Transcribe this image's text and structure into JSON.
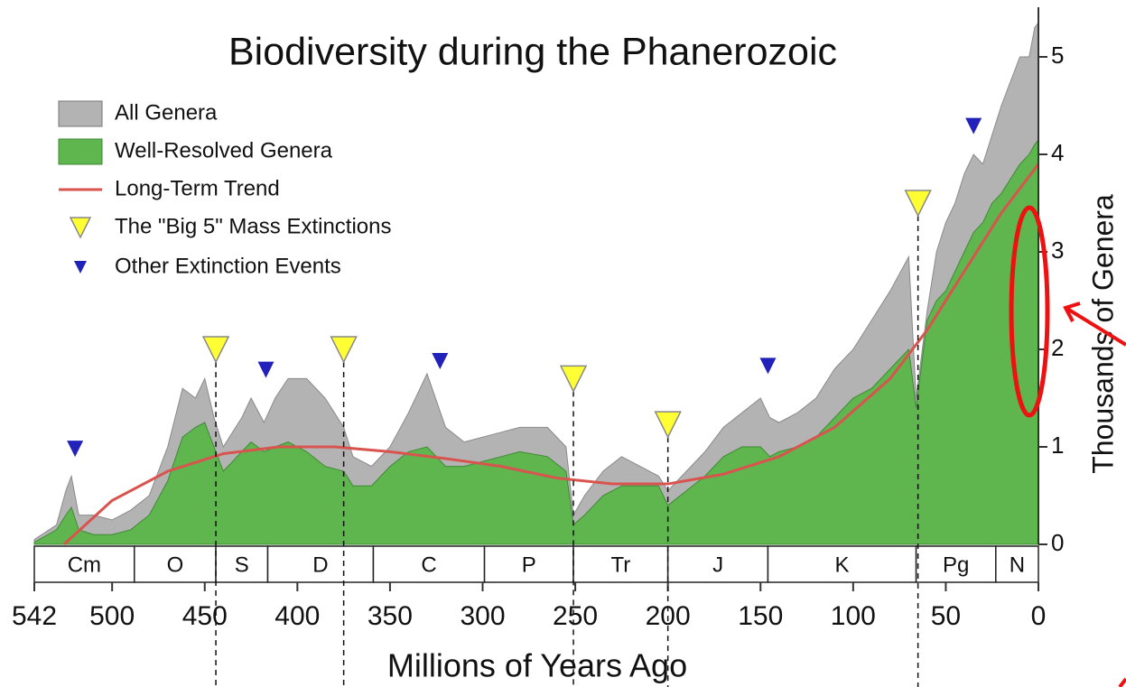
{
  "chart_data": {
    "type": "area",
    "title": "Biodiversity during the Phanerozoic",
    "x_label": "Millions of Years Ago",
    "y_label": "Thousands of Genera",
    "xlim": [
      542,
      0
    ],
    "xticks": [
      542,
      500,
      450,
      400,
      350,
      300,
      250,
      200,
      150,
      100,
      50,
      0
    ],
    "ylim": [
      0,
      5.5
    ],
    "yticks": [
      0,
      1,
      2,
      3,
      4,
      5
    ],
    "x": [
      542,
      530,
      525,
      522,
      518,
      510,
      500,
      490,
      480,
      470,
      462,
      455,
      450,
      445,
      440,
      430,
      425,
      418,
      412,
      405,
      395,
      385,
      375,
      370,
      360,
      350,
      340,
      330,
      320,
      310,
      300,
      290,
      280,
      265,
      255,
      251,
      245,
      235,
      225,
      215,
      205,
      200,
      190,
      180,
      170,
      160,
      150,
      145,
      140,
      130,
      120,
      110,
      100,
      90,
      80,
      70,
      66,
      60,
      55,
      50,
      45,
      40,
      35,
      30,
      25,
      20,
      10,
      5,
      2,
      0
    ],
    "series": [
      {
        "name": "All Genera",
        "color": "#b3b3b3",
        "values": [
          0.05,
          0.2,
          0.55,
          0.7,
          0.3,
          0.3,
          0.25,
          0.35,
          0.5,
          1.0,
          1.6,
          1.5,
          1.7,
          1.3,
          1.0,
          1.3,
          1.5,
          1.25,
          1.5,
          1.7,
          1.7,
          1.5,
          1.2,
          0.9,
          0.8,
          1.0,
          1.35,
          1.75,
          1.2,
          1.05,
          1.1,
          1.15,
          1.2,
          1.2,
          1.0,
          0.3,
          0.5,
          0.75,
          0.9,
          0.8,
          0.7,
          0.55,
          0.75,
          0.95,
          1.2,
          1.35,
          1.5,
          1.3,
          1.25,
          1.35,
          1.5,
          1.8,
          2.0,
          2.3,
          2.6,
          2.95,
          1.5,
          2.4,
          3.0,
          3.3,
          3.5,
          3.8,
          4.0,
          3.9,
          4.2,
          4.5,
          5.0,
          5.0,
          5.3,
          5.35
        ]
      },
      {
        "name": "Well-Resolved Genera",
        "color": "#5fb54e",
        "values": [
          0.02,
          0.15,
          0.3,
          0.38,
          0.15,
          0.1,
          0.1,
          0.15,
          0.3,
          0.65,
          1.1,
          1.2,
          1.25,
          1.0,
          0.75,
          0.95,
          1.05,
          0.95,
          1.0,
          1.05,
          0.95,
          0.8,
          0.75,
          0.6,
          0.6,
          0.8,
          0.95,
          1.0,
          0.8,
          0.8,
          0.85,
          0.9,
          0.95,
          0.9,
          0.75,
          0.2,
          0.3,
          0.5,
          0.6,
          0.6,
          0.6,
          0.4,
          0.55,
          0.7,
          0.9,
          1.0,
          1.0,
          0.9,
          0.95,
          1.0,
          1.1,
          1.3,
          1.5,
          1.6,
          1.8,
          2.0,
          1.4,
          2.3,
          2.5,
          2.6,
          2.8,
          3.0,
          3.2,
          3.3,
          3.5,
          3.6,
          3.9,
          4.0,
          4.1,
          4.15
        ]
      }
    ],
    "trend": {
      "name": "Long-Term Trend",
      "color": "#d9534f",
      "x": [
        526,
        500,
        470,
        440,
        410,
        380,
        350,
        320,
        290,
        260,
        230,
        200,
        170,
        140,
        110,
        80,
        60,
        40,
        20,
        0
      ],
      "values": [
        0,
        0.45,
        0.75,
        0.93,
        1.0,
        1.0,
        0.95,
        0.88,
        0.8,
        0.68,
        0.62,
        0.62,
        0.72,
        0.9,
        1.2,
        1.7,
        2.2,
        2.8,
        3.4,
        3.9
      ]
    },
    "big5": {
      "name": "The \"Big 5\" Mass Extinctions",
      "color": "#ffff33",
      "x": [
        444,
        375,
        251,
        200,
        65
      ],
      "values": [
        2.0,
        2.0,
        1.7,
        1.23,
        3.5
      ]
    },
    "other": {
      "name": "Other Extinction Events",
      "color": "#2222bb",
      "x": [
        520,
        417,
        323,
        146,
        35
      ],
      "values": [
        0.98,
        1.79,
        1.88,
        1.83,
        4.29
      ]
    },
    "periods": [
      {
        "label": "Cm",
        "start": 542,
        "end": 488
      },
      {
        "label": "O",
        "start": 488,
        "end": 444
      },
      {
        "label": "S",
        "start": 444,
        "end": 416
      },
      {
        "label": "D",
        "start": 416,
        "end": 359
      },
      {
        "label": "C",
        "start": 359,
        "end": 299
      },
      {
        "label": "P",
        "start": 299,
        "end": 251
      },
      {
        "label": "Tr",
        "start": 251,
        "end": 200
      },
      {
        "label": "J",
        "start": 200,
        "end": 146
      },
      {
        "label": "K",
        "start": 146,
        "end": 66
      },
      {
        "label": "Pg",
        "start": 66,
        "end": 23
      },
      {
        "label": "N",
        "start": 23,
        "end": 0
      }
    ]
  }
}
